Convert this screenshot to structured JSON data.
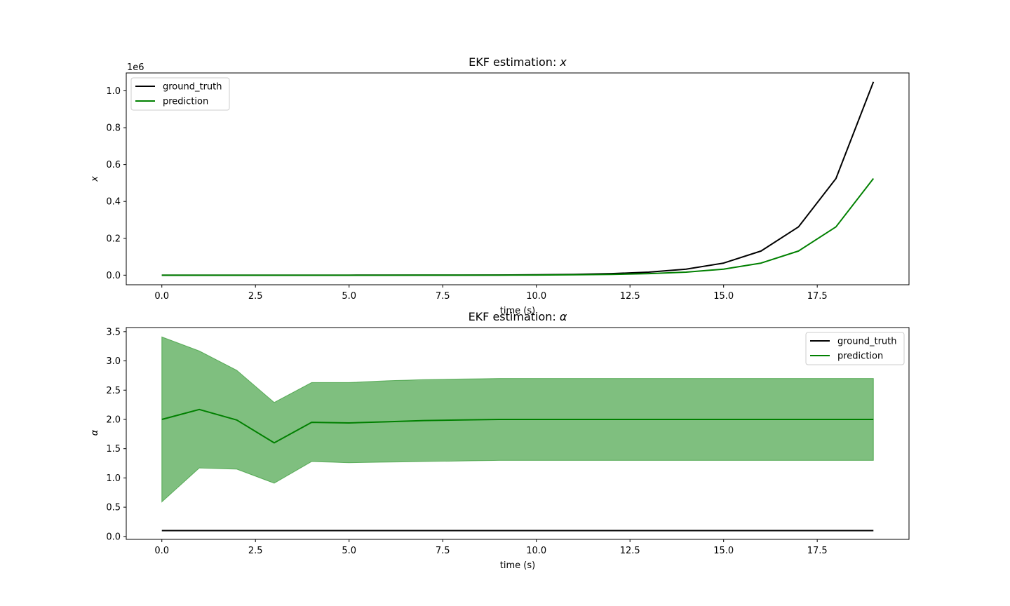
{
  "chart_data": [
    {
      "type": "line",
      "title": "EKF estimation: x",
      "title_prefix": "EKF estimation: ",
      "title_symbol": "x",
      "xlabel": "time (s)",
      "ylabel": "x",
      "offset_label": "1e6",
      "xlim": [
        -0.95,
        19.95
      ],
      "ylim": [
        -0.052,
        1.097
      ],
      "xticks": [
        0,
        2.5,
        5,
        7.5,
        10,
        12.5,
        15,
        17.5
      ],
      "xtick_labels": [
        "0.0",
        "2.5",
        "5.0",
        "7.5",
        "10.0",
        "12.5",
        "15.0",
        "17.5"
      ],
      "yticks": [
        0,
        0.2,
        0.4,
        0.6,
        0.8,
        1.0
      ],
      "ytick_labels": [
        "0.0",
        "0.2",
        "0.4",
        "0.6",
        "0.8",
        "1.0"
      ],
      "legend_position": "upper-left",
      "grid": false,
      "x": [
        0,
        1,
        2,
        3,
        4,
        5,
        6,
        7,
        8,
        9,
        10,
        11,
        12,
        13,
        14,
        15,
        16,
        17,
        18,
        19
      ],
      "series": [
        {
          "name": "ground_truth",
          "color": "#000000",
          "values": [
            2e-06,
            4e-06,
            8e-06,
            1.6e-05,
            3.2e-05,
            6.4e-05,
            0.000128,
            0.000256,
            0.000512,
            0.001024,
            0.002048,
            0.004096,
            0.008192,
            0.016384,
            0.032768,
            0.065536,
            0.131072,
            0.262144,
            0.524288,
            1.048576
          ]
        },
        {
          "name": "prediction",
          "color": "#008000",
          "values": [
            1e-06,
            2e-06,
            4e-06,
            8e-06,
            1.6e-05,
            3.2e-05,
            6.4e-05,
            0.000128,
            0.000256,
            0.000512,
            0.001024,
            0.002048,
            0.004096,
            0.008192,
            0.016384,
            0.032768,
            0.065536,
            0.131072,
            0.262144,
            0.524288
          ]
        }
      ]
    },
    {
      "type": "line",
      "title": "EKF estimation: α",
      "title_prefix": "EKF estimation: ",
      "title_symbol": "α",
      "xlabel": "time (s)",
      "ylabel": "α",
      "xlim": [
        -0.95,
        19.95
      ],
      "ylim": [
        -0.05,
        3.57
      ],
      "xticks": [
        0,
        2.5,
        5,
        7.5,
        10,
        12.5,
        15,
        17.5
      ],
      "xtick_labels": [
        "0.0",
        "2.5",
        "5.0",
        "7.5",
        "10.0",
        "12.5",
        "15.0",
        "17.5"
      ],
      "yticks": [
        0,
        0.5,
        1.0,
        1.5,
        2.0,
        2.5,
        3.0,
        3.5
      ],
      "ytick_labels": [
        "0.0",
        "0.5",
        "1.0",
        "1.5",
        "2.0",
        "2.5",
        "3.0",
        "3.5"
      ],
      "legend_position": "upper-right",
      "grid": false,
      "x": [
        0,
        1,
        2,
        3,
        4,
        5,
        6,
        7,
        8,
        9,
        10,
        11,
        12,
        13,
        14,
        15,
        16,
        17,
        18,
        19
      ],
      "series": [
        {
          "name": "ground_truth",
          "color": "#000000",
          "values": [
            0.1,
            0.1,
            0.1,
            0.1,
            0.1,
            0.1,
            0.1,
            0.1,
            0.1,
            0.1,
            0.1,
            0.1,
            0.1,
            0.1,
            0.1,
            0.1,
            0.1,
            0.1,
            0.1,
            0.1
          ]
        },
        {
          "name": "prediction",
          "color": "#008000",
          "values": [
            2.0,
            2.17,
            1.99,
            1.6,
            1.95,
            1.94,
            1.96,
            1.98,
            1.99,
            2.0,
            2.0,
            2.0,
            2.0,
            2.0,
            2.0,
            2.0,
            2.0,
            2.0,
            2.0,
            2.0
          ]
        }
      ],
      "band": {
        "color": "#008000",
        "opacity": 0.5,
        "upper": [
          3.41,
          3.17,
          2.84,
          2.29,
          2.63,
          2.63,
          2.66,
          2.68,
          2.69,
          2.7,
          2.7,
          2.7,
          2.7,
          2.7,
          2.7,
          2.7,
          2.7,
          2.7,
          2.7,
          2.7
        ],
        "lower": [
          0.59,
          1.17,
          1.15,
          0.91,
          1.28,
          1.26,
          1.27,
          1.28,
          1.29,
          1.3,
          1.3,
          1.3,
          1.3,
          1.3,
          1.3,
          1.3,
          1.3,
          1.3,
          1.3,
          1.3
        ]
      }
    }
  ]
}
